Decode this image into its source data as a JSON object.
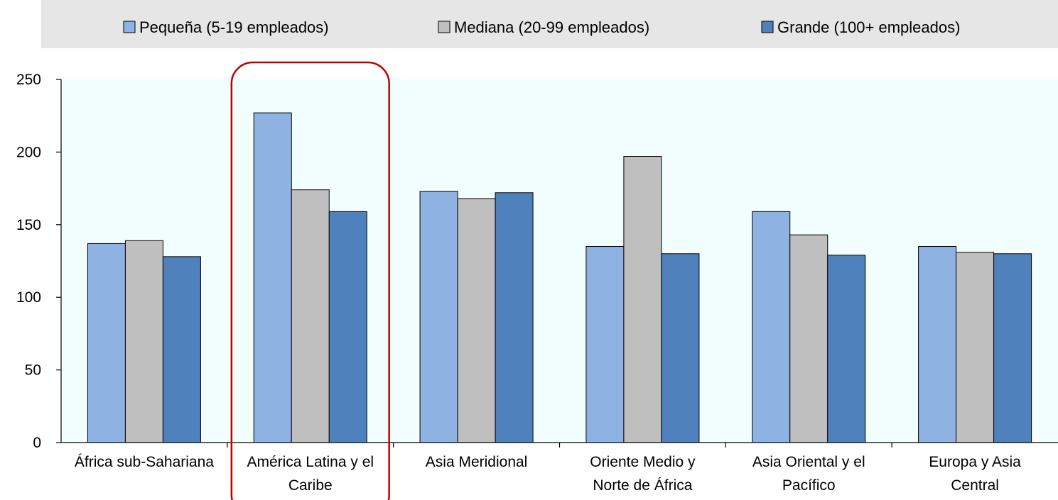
{
  "chart_data": {
    "type": "bar",
    "categories": [
      [
        "África sub-Sahariana"
      ],
      [
        "América Latina y el",
        "Caribe"
      ],
      [
        "Asia Meridional"
      ],
      [
        "Oriente Medio y",
        "Norte de África"
      ],
      [
        "Asia Oriental y el",
        "Pacífico"
      ],
      [
        "Europa y Asia",
        "Central"
      ]
    ],
    "series": [
      {
        "name": "Pequeña (5-19 empleados)",
        "color": "#8EB3E3",
        "values": [
          137,
          227,
          173,
          135,
          159,
          135
        ]
      },
      {
        "name": "Mediana (20-99 empleados)",
        "color": "#BFBFBF",
        "values": [
          139,
          174,
          168,
          197,
          143,
          131
        ]
      },
      {
        "name": "Grande (100+ empleados)",
        "color": "#4F81BD",
        "values": [
          128,
          159,
          172,
          130,
          129,
          130
        ]
      }
    ],
    "yticks": [
      "0",
      "50",
      "100",
      "150",
      "200",
      "250"
    ],
    "ylim": [
      0,
      250
    ],
    "grid": false,
    "legend_position": "top",
    "plot_background": "#F2FDFE",
    "highlight": {
      "category_index": 1,
      "color": "#C00000"
    }
  }
}
